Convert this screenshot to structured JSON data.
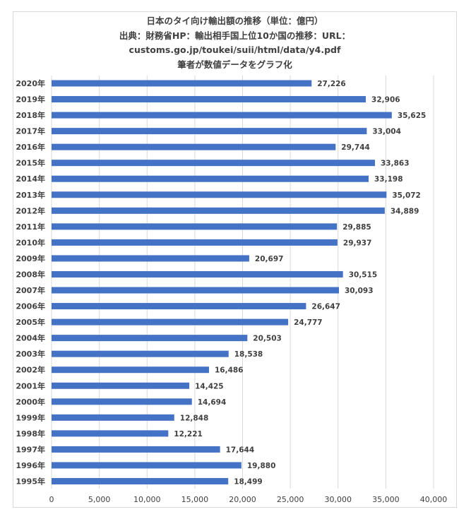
{
  "chart_data": {
    "type": "bar",
    "orientation": "horizontal",
    "title_lines": [
      "日本のタイ向け輸出額の推移（単位：億円）",
      "出典：財務省HP：輸出相手国上位10か国の推移：URL：",
      "customs.go.jp/toukei/suii/html/data/y4.pdf",
      "筆者が数値データをグラフ化"
    ],
    "categories": [
      "2020年",
      "2019年",
      "2018年",
      "2017年",
      "2016年",
      "2015年",
      "2014年",
      "2013年",
      "2012年",
      "2011年",
      "2010年",
      "2009年",
      "2008年",
      "2007年",
      "2006年",
      "2005年",
      "2004年",
      "2003年",
      "2002年",
      "2001年",
      "2000年",
      "1999年",
      "1998年",
      "1997年",
      "1996年",
      "1995年"
    ],
    "values": [
      27226,
      32906,
      35625,
      33004,
      29744,
      33863,
      33198,
      35072,
      34889,
      29885,
      29937,
      20697,
      30515,
      30093,
      26647,
      24777,
      20503,
      18538,
      16486,
      14425,
      14694,
      12848,
      12221,
      17644,
      19880,
      18499
    ],
    "data_labels": [
      "27,226",
      "32,906",
      "35,625",
      "33,004",
      "29,744",
      "33,863",
      "33,198",
      "35,072",
      "34,889",
      "29,885",
      "29,937",
      "20,697",
      "30,515",
      "30,093",
      "26,647",
      "24,777",
      "20,503",
      "18,538",
      "16,486",
      "14,425",
      "14,694",
      "12,848",
      "12,221",
      "17,644",
      "19,880",
      "18,499"
    ],
    "x_ticks": [
      "0",
      "5,000",
      "10,000",
      "15,000",
      "20,000",
      "25,000",
      "30,000",
      "35,000",
      "40,000"
    ],
    "xlim": [
      0,
      40000
    ],
    "xlabel": "",
    "ylabel": "",
    "grid": true,
    "bar_color": "#4472c4",
    "grid_color": "#d9d9d9",
    "text_color": "#404040"
  }
}
